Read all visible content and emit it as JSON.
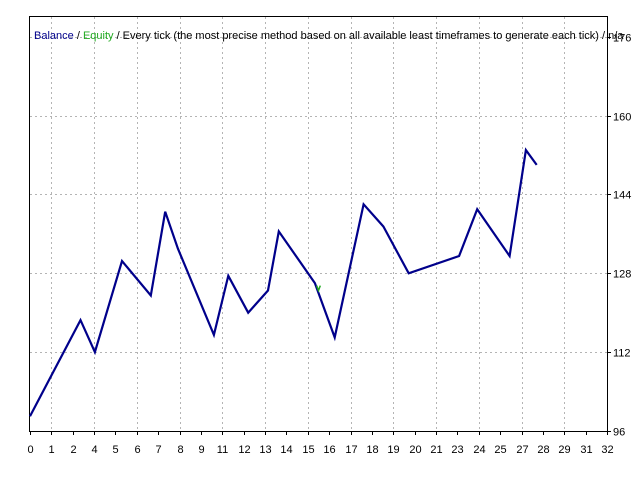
{
  "chart_data": {
    "type": "line",
    "legend": {
      "balance_label": "Balance",
      "separator": " / ",
      "equity_label": "Equity",
      "description": " / Every tick (the most precise method based on all available least timeframes to generate each tick) / n/a"
    },
    "x_ticks": [
      "0",
      "1",
      "2",
      "3",
      "4",
      "5",
      "6",
      "7",
      "8",
      "9",
      "10",
      "11",
      "12",
      "13",
      "14",
      "15",
      "16",
      "17",
      "18",
      "19",
      "20",
      "21",
      "22",
      "23",
      "24",
      "25",
      "26",
      "27",
      "28",
      "29",
      "30",
      "31",
      "32"
    ],
    "x_tick_labels": [
      "0",
      "1",
      "2",
      "4",
      "5",
      "6",
      "7",
      "8",
      "9",
      "11",
      "12",
      "13",
      "14",
      "15",
      "16",
      "17",
      "18",
      "19",
      "20",
      "21",
      "23",
      "24",
      "25",
      "27",
      "28",
      "29",
      "31",
      "32"
    ],
    "y_ticks": [
      96,
      112,
      128,
      144,
      160,
      176
    ],
    "ylim": [
      96,
      180
    ],
    "xlim": [
      0,
      32
    ],
    "grid": true,
    "colors": {
      "balance": "#00008b",
      "equity": "#22aa22",
      "grid": "#b4b4b4",
      "frame": "#000000",
      "legend_text": "#000000"
    },
    "series": [
      {
        "name": "Balance",
        "x": [
          0,
          2.8,
          3.6,
          5.1,
          6.7,
          7.5,
          8.2,
          10.2,
          11.0,
          12.1,
          13.2,
          13.8,
          15.8,
          16.9,
          18.5,
          19.6,
          21.0,
          23.8,
          24.8,
          26.6,
          27.5,
          28.1
        ],
        "y": [
          99,
          118.5,
          112,
          130.5,
          123.5,
          140.5,
          133,
          115.5,
          127.5,
          120,
          124.5,
          136.5,
          126,
          115,
          142,
          137.5,
          128,
          131.5,
          141,
          131.5,
          153,
          150
        ]
      },
      {
        "name": "Equity",
        "x": [
          15.9,
          16.0,
          16.1
        ],
        "y": [
          125.5,
          124.5,
          125.5
        ]
      }
    ]
  }
}
